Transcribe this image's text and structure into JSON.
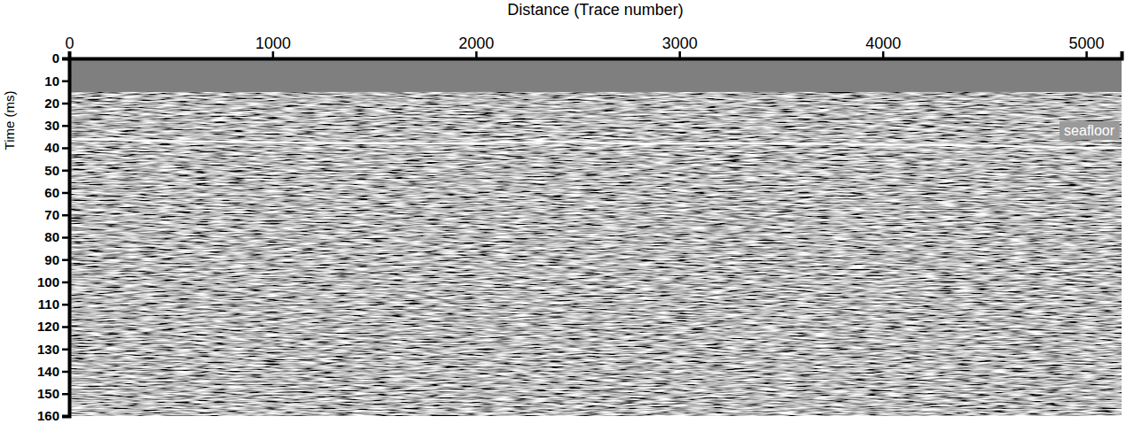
{
  "chart_data": {
    "type": "line",
    "x_title": "Distance (Trace number)",
    "y_title": "Time (ms)",
    "x": [
      0,
      500,
      1000,
      1500,
      2000,
      2400,
      2700,
      3000,
      3500,
      4000,
      4500,
      5000,
      5174
    ],
    "series": [
      {
        "name": "seafloor",
        "color": "#ffffff",
        "values": [
          36,
          37,
          37.5,
          38,
          38,
          37,
          38,
          38,
          38,
          38.5,
          39,
          40,
          40
        ]
      }
    ],
    "mute_end": 15,
    "xlim": [
      0,
      5174
    ],
    "xticks": [
      0,
      1000,
      2000,
      3000,
      4000,
      5000
    ],
    "ylim": [
      0,
      160
    ],
    "yticks": [
      0,
      10,
      20,
      30,
      40,
      50,
      60,
      70,
      80,
      90,
      100,
      110,
      120,
      130,
      140,
      150,
      160
    ],
    "grid": false
  }
}
